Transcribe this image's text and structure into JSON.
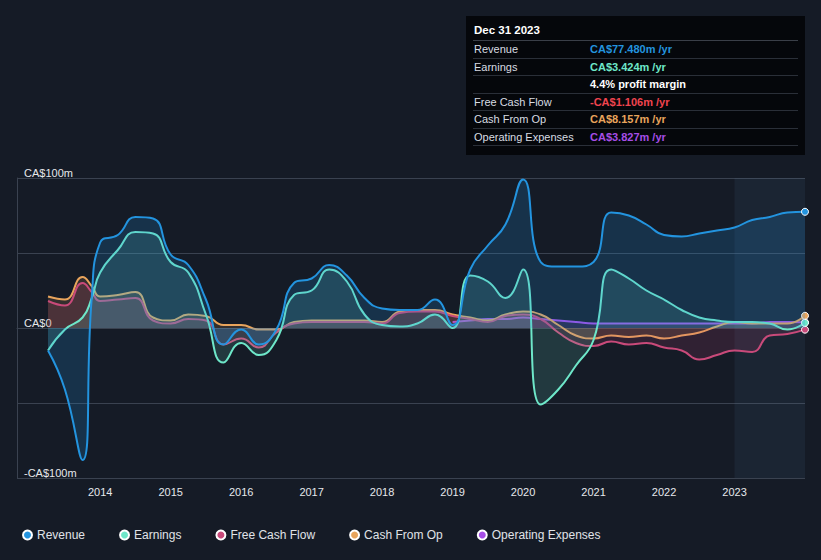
{
  "chart_data": {
    "type": "line",
    "x": [
      2013.26,
      2013.5,
      2013.75,
      2013.88,
      2014.0,
      2014.25,
      2014.5,
      2014.75,
      2015.0,
      2015.25,
      2015.5,
      2015.75,
      2016.0,
      2016.25,
      2016.5,
      2016.75,
      2017.0,
      2017.25,
      2017.5,
      2017.75,
      2018.0,
      2018.25,
      2018.5,
      2018.75,
      2019.0,
      2019.25,
      2019.5,
      2019.75,
      2020.0,
      2020.25,
      2020.5,
      2020.75,
      2021.0,
      2021.25,
      2021.5,
      2021.75,
      2022.0,
      2022.25,
      2022.5,
      2022.75,
      2023.0,
      2023.25,
      2023.5,
      2023.75,
      2024.0
    ],
    "series": [
      {
        "name": "Revenue",
        "color": "#2394df",
        "values": [
          -15,
          -41,
          -88,
          20,
          57,
          62,
          74,
          73,
          49,
          42,
          19,
          -11,
          -1,
          -11,
          -1,
          30,
          33,
          42,
          35,
          20,
          13,
          12,
          12,
          19,
          2,
          39,
          55,
          69,
          99,
          44,
          41,
          41,
          44,
          77,
          75,
          69,
          62,
          61,
          63,
          65,
          67,
          72,
          74,
          77,
          77.48
        ]
      },
      {
        "name": "Earnings",
        "color": "#6ee7c9",
        "values": [
          -15,
          -1,
          7,
          20,
          37,
          52,
          64,
          63,
          44,
          37,
          9,
          -23,
          -10,
          -18,
          -8,
          22,
          25,
          39,
          31,
          9,
          2,
          1,
          3,
          9,
          0,
          35,
          31,
          20,
          39,
          -51,
          -41,
          -25,
          -8,
          39,
          33,
          25,
          19,
          12,
          7,
          5,
          4,
          4,
          3,
          -1,
          3.424
        ]
      },
      {
        "name": "Free Cash Flow",
        "color": "#c94a7a",
        "values": [
          18,
          15,
          30,
          24,
          18,
          19,
          20,
          5,
          3,
          6,
          5,
          -11,
          -7,
          -13,
          -3,
          3,
          4,
          4,
          4,
          4,
          3,
          10,
          11,
          11,
          8,
          6,
          4,
          8,
          9,
          6,
          -3,
          -10,
          -12,
          -9,
          -11,
          -10,
          -13,
          -15,
          -21,
          -18,
          -15,
          -16,
          -5,
          -4,
          -1.106
        ]
      },
      {
        "name": "Cash From Op",
        "color": "#e8a45c",
        "values": [
          21,
          19,
          34,
          28,
          21,
          22,
          24,
          7,
          5,
          9,
          8,
          2,
          2,
          -1,
          -1,
          4,
          5,
          5,
          5,
          5,
          4,
          11,
          12,
          12,
          9,
          7,
          5,
          9,
          11,
          9,
          2,
          -5,
          -7,
          -5,
          -6,
          -5,
          -7,
          -5,
          -3,
          1,
          4,
          3,
          3,
          3,
          8.157
        ]
      },
      {
        "name": "Operating Expenses",
        "color": "#a64de6",
        "values": [
          null,
          null,
          null,
          null,
          null,
          null,
          null,
          null,
          null,
          null,
          null,
          null,
          null,
          null,
          null,
          null,
          null,
          null,
          null,
          null,
          null,
          null,
          null,
          null,
          4,
          5,
          6,
          6,
          7,
          6,
          5,
          4,
          3,
          3,
          3,
          3,
          3,
          3,
          3,
          3,
          3,
          3,
          4,
          4,
          3.827
        ]
      }
    ],
    "xlim": [
      2012.82,
      2024.0
    ],
    "xticks": [
      2014,
      2015,
      2016,
      2017,
      2018,
      2019,
      2020,
      2021,
      2022,
      2023
    ],
    "ylim": [
      -100,
      100
    ],
    "yticks": [
      {
        "value": -100,
        "label": "-CA$100m"
      },
      {
        "value": 0,
        "label": "CA$0"
      },
      {
        "value": 100,
        "label": "CA$100m"
      }
    ],
    "grid": true,
    "legend": "bottom left",
    "highlight_x": [
      2023,
      2024.0
    ],
    "info_box": {
      "title": "Dec 31 2023",
      "rows": [
        {
          "label": "Revenue",
          "value": "CA$77.480m /yr",
          "color": "#2394df"
        },
        {
          "label": "Earnings",
          "value": "CA$3.424m /yr",
          "color": "#6ee7c9"
        },
        {
          "value": "4.4% profit margin",
          "color": "#ffffff"
        },
        {
          "label": "Free Cash Flow",
          "value": "-CA$1.106m /yr",
          "color": "#f0444f"
        },
        {
          "label": "Cash From Op",
          "value": "CA$8.157m /yr",
          "color": "#e8a45c"
        },
        {
          "label": "Operating Expenses",
          "value": "CA$3.827m /yr",
          "color": "#a64de6"
        }
      ]
    }
  }
}
